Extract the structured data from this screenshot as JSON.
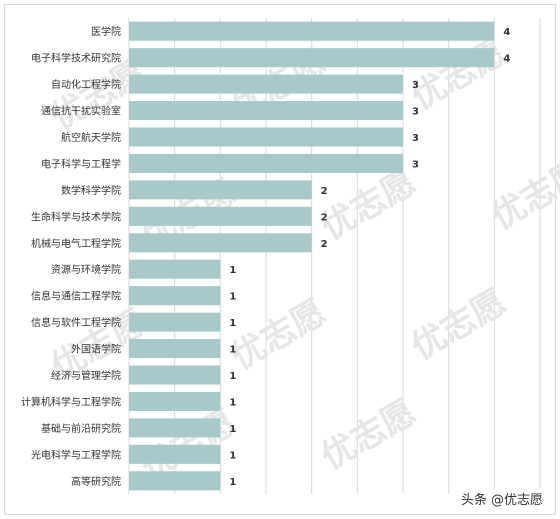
{
  "chart_data": {
    "type": "bar",
    "orientation": "horizontal",
    "categories": [
      "医学院",
      "电子科学技术研究院",
      "自动化工程学院",
      "通信抗干扰实验室",
      "航空航天学院",
      "电子科学与工程学",
      "数学科学学院",
      "生命科学与技术学院",
      "机械与电气工程学院",
      "资源与环境学院",
      "信息与通信工程学院",
      "信息与软件工程学院",
      "外国语学院",
      "经济与管理学院",
      "计算机科学与工程学院",
      "基础与前沿研究院",
      "光电科学与工程学院",
      "高等研究院"
    ],
    "values": [
      4,
      4,
      3,
      3,
      3,
      3,
      2,
      2,
      2,
      1,
      1,
      1,
      1,
      1,
      1,
      1,
      1,
      1
    ],
    "title": "",
    "xlabel": "",
    "ylabel": "",
    "xlim": [
      0,
      4.5
    ],
    "grid": true,
    "legend": "none",
    "bar_color": "#a8c8ca",
    "grid_color": "#d9d9d9"
  },
  "watermark": "优志愿",
  "credit": "头条 @优志愿"
}
